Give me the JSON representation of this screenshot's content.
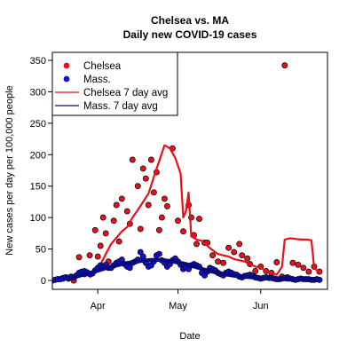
{
  "chart_data": {
    "type": "scatter",
    "title": "Chelsea vs. MA",
    "subtitle": "Daily new COVID-19 cases",
    "xlabel": "Date",
    "ylabel": "New cases per day per 100,000 people",
    "xlim": [
      "2020-03-15",
      "2020-06-26"
    ],
    "ylim": [
      0,
      360
    ],
    "yticks": [
      0,
      50,
      100,
      150,
      200,
      250,
      300,
      350
    ],
    "xticks": [
      {
        "label": "Apr",
        "date": "2020-04-01"
      },
      {
        "label": "May",
        "date": "2020-05-01"
      },
      {
        "label": "Jun",
        "date": "2020-06-01"
      }
    ],
    "grid": false,
    "legend_position": "top-left",
    "legend": [
      {
        "label": "Chelsea",
        "kind": "point",
        "color": "#e8101a"
      },
      {
        "label": "Mass.",
        "kind": "point",
        "color": "#1010d8"
      },
      {
        "label": "Chelsea 7 day avg",
        "kind": "line",
        "color": "#e8101a"
      },
      {
        "label": "Mass. 7 day avg",
        "kind": "line",
        "color": "#0a0a80"
      }
    ],
    "series": [
      {
        "name": "Chelsea",
        "kind": "points",
        "color": "#e8101a",
        "points": [
          [
            "2020-03-17",
            2
          ],
          [
            "2020-03-19",
            4
          ],
          [
            "2020-03-21",
            3
          ],
          [
            "2020-03-23",
            0
          ],
          [
            "2020-03-25",
            37
          ],
          [
            "2020-03-27",
            10
          ],
          [
            "2020-03-28",
            12
          ],
          [
            "2020-03-29",
            40
          ],
          [
            "2020-03-31",
            80
          ],
          [
            "2020-04-01",
            38
          ],
          [
            "2020-04-02",
            55
          ],
          [
            "2020-04-03",
            100
          ],
          [
            "2020-04-04",
            75
          ],
          [
            "2020-04-05",
            30
          ],
          [
            "2020-04-07",
            95
          ],
          [
            "2020-04-08",
            120
          ],
          [
            "2020-04-09",
            62
          ],
          [
            "2020-04-10",
            130
          ],
          [
            "2020-04-12",
            110
          ],
          [
            "2020-04-13",
            90
          ],
          [
            "2020-04-14",
            192
          ],
          [
            "2020-04-16",
            150
          ],
          [
            "2020-04-17",
            82
          ],
          [
            "2020-04-18",
            178
          ],
          [
            "2020-04-19",
            162
          ],
          [
            "2020-04-20",
            120
          ],
          [
            "2020-04-21",
            192
          ],
          [
            "2020-04-22",
            140
          ],
          [
            "2020-04-23",
            172
          ],
          [
            "2020-04-24",
            80
          ],
          [
            "2020-04-25",
            100
          ],
          [
            "2020-04-26",
            130
          ],
          [
            "2020-04-27",
            118
          ],
          [
            "2020-04-29",
            210
          ],
          [
            "2020-05-01",
            95
          ],
          [
            "2020-05-03",
            78
          ],
          [
            "2020-05-05",
            120
          ],
          [
            "2020-05-06",
            100
          ],
          [
            "2020-05-07",
            72
          ],
          [
            "2020-05-08",
            58
          ],
          [
            "2020-05-09",
            98
          ],
          [
            "2020-05-11",
            60
          ],
          [
            "2020-05-12",
            60
          ],
          [
            "2020-05-14",
            40
          ],
          [
            "2020-05-16",
            30
          ],
          [
            "2020-05-18",
            28
          ],
          [
            "2020-05-20",
            52
          ],
          [
            "2020-05-22",
            45
          ],
          [
            "2020-05-24",
            58
          ],
          [
            "2020-05-25",
            40
          ],
          [
            "2020-05-27",
            35
          ],
          [
            "2020-05-28",
            26
          ],
          [
            "2020-05-30",
            15
          ],
          [
            "2020-06-01",
            22
          ],
          [
            "2020-06-03",
            15
          ],
          [
            "2020-06-05",
            12
          ],
          [
            "2020-06-07",
            29
          ],
          [
            "2020-06-09",
            6
          ],
          [
            "2020-06-10",
            342
          ],
          [
            "2020-06-11",
            5
          ],
          [
            "2020-06-13",
            28
          ],
          [
            "2020-06-15",
            25
          ],
          [
            "2020-06-17",
            20
          ],
          [
            "2020-06-19",
            14
          ],
          [
            "2020-06-21",
            22
          ],
          [
            "2020-06-23",
            14
          ]
        ]
      },
      {
        "name": "Mass.",
        "kind": "points",
        "color": "#1010d8",
        "points": [
          [
            "2020-03-15",
            0
          ],
          [
            "2020-03-16",
            1
          ],
          [
            "2020-03-17",
            2
          ],
          [
            "2020-03-18",
            2
          ],
          [
            "2020-03-19",
            3
          ],
          [
            "2020-03-20",
            5
          ],
          [
            "2020-03-21",
            4
          ],
          [
            "2020-03-22",
            6
          ],
          [
            "2020-03-23",
            5
          ],
          [
            "2020-03-24",
            8
          ],
          [
            "2020-03-25",
            12
          ],
          [
            "2020-03-26",
            14
          ],
          [
            "2020-03-27",
            15
          ],
          [
            "2020-03-28",
            13
          ],
          [
            "2020-03-29",
            10
          ],
          [
            "2020-03-30",
            11
          ],
          [
            "2020-03-31",
            16
          ],
          [
            "2020-04-01",
            20
          ],
          [
            "2020-04-02",
            24
          ],
          [
            "2020-04-03",
            22
          ],
          [
            "2020-04-04",
            25
          ],
          [
            "2020-04-05",
            20
          ],
          [
            "2020-04-06",
            20
          ],
          [
            "2020-04-07",
            24
          ],
          [
            "2020-04-08",
            28
          ],
          [
            "2020-04-09",
            30
          ],
          [
            "2020-04-10",
            33
          ],
          [
            "2020-04-11",
            26
          ],
          [
            "2020-04-12",
            22
          ],
          [
            "2020-04-13",
            20
          ],
          [
            "2020-04-14",
            28
          ],
          [
            "2020-04-15",
            30
          ],
          [
            "2020-04-16",
            33
          ],
          [
            "2020-04-17",
            45
          ],
          [
            "2020-04-18",
            38
          ],
          [
            "2020-04-19",
            28
          ],
          [
            "2020-04-20",
            22
          ],
          [
            "2020-04-21",
            24
          ],
          [
            "2020-04-22",
            30
          ],
          [
            "2020-04-23",
            40
          ],
          [
            "2020-04-24",
            42
          ],
          [
            "2020-04-25",
            32
          ],
          [
            "2020-04-26",
            28
          ],
          [
            "2020-04-27",
            22
          ],
          [
            "2020-04-28",
            26
          ],
          [
            "2020-04-29",
            32
          ],
          [
            "2020-04-30",
            35
          ],
          [
            "2020-05-01",
            30
          ],
          [
            "2020-05-02",
            25
          ],
          [
            "2020-05-03",
            18
          ],
          [
            "2020-05-04",
            20
          ],
          [
            "2020-05-05",
            18
          ],
          [
            "2020-05-06",
            24
          ],
          [
            "2020-05-07",
            26
          ],
          [
            "2020-05-08",
            24
          ],
          [
            "2020-05-09",
            22
          ],
          [
            "2020-05-10",
            12
          ],
          [
            "2020-05-11",
            8
          ],
          [
            "2020-05-12",
            14
          ],
          [
            "2020-05-13",
            20
          ],
          [
            "2020-05-14",
            18
          ],
          [
            "2020-05-15",
            16
          ],
          [
            "2020-05-16",
            12
          ],
          [
            "2020-05-17",
            10
          ],
          [
            "2020-05-18",
            8
          ],
          [
            "2020-05-19",
            12
          ],
          [
            "2020-05-20",
            14
          ],
          [
            "2020-05-21",
            12
          ],
          [
            "2020-05-22",
            10
          ],
          [
            "2020-05-23",
            9
          ],
          [
            "2020-05-24",
            6
          ],
          [
            "2020-05-25",
            5
          ],
          [
            "2020-05-26",
            7
          ],
          [
            "2020-05-27",
            8
          ],
          [
            "2020-05-28",
            9
          ],
          [
            "2020-05-29",
            7
          ],
          [
            "2020-05-30",
            5
          ],
          [
            "2020-05-31",
            4
          ],
          [
            "2020-06-01",
            3
          ],
          [
            "2020-06-02",
            4
          ],
          [
            "2020-06-03",
            5
          ],
          [
            "2020-06-04",
            4
          ],
          [
            "2020-06-05",
            4
          ],
          [
            "2020-06-06",
            3
          ],
          [
            "2020-06-07",
            2
          ],
          [
            "2020-06-08",
            2
          ],
          [
            "2020-06-09",
            3
          ],
          [
            "2020-06-10",
            4
          ],
          [
            "2020-06-11",
            3
          ],
          [
            "2020-06-12",
            3
          ],
          [
            "2020-06-13",
            2
          ],
          [
            "2020-06-14",
            1
          ],
          [
            "2020-06-15",
            2
          ],
          [
            "2020-06-16",
            3
          ],
          [
            "2020-06-17",
            2
          ],
          [
            "2020-06-18",
            2
          ],
          [
            "2020-06-19",
            2
          ],
          [
            "2020-06-20",
            1
          ],
          [
            "2020-06-21",
            1
          ],
          [
            "2020-06-22",
            2
          ],
          [
            "2020-06-23",
            1
          ]
        ]
      },
      {
        "name": "Chelsea 7 day avg",
        "kind": "line",
        "color": "#e8101a",
        "points": [
          [
            "2020-03-29",
            5
          ],
          [
            "2020-03-31",
            12
          ],
          [
            "2020-04-02",
            25
          ],
          [
            "2020-04-04",
            42
          ],
          [
            "2020-04-06",
            58
          ],
          [
            "2020-04-08",
            68
          ],
          [
            "2020-04-10",
            78
          ],
          [
            "2020-04-12",
            85
          ],
          [
            "2020-04-14",
            100
          ],
          [
            "2020-04-16",
            112
          ],
          [
            "2020-04-18",
            125
          ],
          [
            "2020-04-20",
            138
          ],
          [
            "2020-04-22",
            165
          ],
          [
            "2020-04-24",
            190
          ],
          [
            "2020-04-26",
            215
          ],
          [
            "2020-04-28",
            210
          ],
          [
            "2020-04-30",
            195
          ],
          [
            "2020-05-02",
            170
          ],
          [
            "2020-05-03",
            100
          ],
          [
            "2020-05-04",
            110
          ],
          [
            "2020-05-05",
            140
          ],
          [
            "2020-05-06",
            70
          ],
          [
            "2020-05-08",
            65
          ],
          [
            "2020-05-10",
            63
          ],
          [
            "2020-05-12",
            55
          ],
          [
            "2020-05-14",
            48
          ],
          [
            "2020-05-16",
            42
          ],
          [
            "2020-05-18",
            40
          ],
          [
            "2020-05-20",
            38
          ],
          [
            "2020-05-22",
            34
          ],
          [
            "2020-05-24",
            32
          ],
          [
            "2020-05-26",
            30
          ],
          [
            "2020-05-28",
            26
          ],
          [
            "2020-05-30",
            22
          ],
          [
            "2020-06-01",
            20
          ],
          [
            "2020-06-03",
            15
          ],
          [
            "2020-06-05",
            12
          ],
          [
            "2020-06-07",
            9
          ],
          [
            "2020-06-09",
            22
          ],
          [
            "2020-06-10",
            65
          ],
          [
            "2020-06-12",
            67
          ],
          [
            "2020-06-14",
            66
          ],
          [
            "2020-06-16",
            65
          ],
          [
            "2020-06-18",
            65
          ],
          [
            "2020-06-20",
            64
          ],
          [
            "2020-06-21",
            20
          ],
          [
            "2020-06-23",
            12
          ]
        ]
      },
      {
        "name": "Mass. 7 day avg",
        "kind": "line",
        "color": "#0a0a80",
        "points": [
          [
            "2020-03-21",
            3
          ],
          [
            "2020-03-24",
            6
          ],
          [
            "2020-03-27",
            10
          ],
          [
            "2020-03-30",
            13
          ],
          [
            "2020-04-02",
            17
          ],
          [
            "2020-04-05",
            21
          ],
          [
            "2020-04-08",
            24
          ],
          [
            "2020-04-11",
            27
          ],
          [
            "2020-04-14",
            29
          ],
          [
            "2020-04-17",
            31
          ],
          [
            "2020-04-20",
            32
          ],
          [
            "2020-04-23",
            33
          ],
          [
            "2020-04-26",
            32
          ],
          [
            "2020-04-29",
            30
          ],
          [
            "2020-05-02",
            28
          ],
          [
            "2020-05-05",
            25
          ],
          [
            "2020-05-08",
            21
          ],
          [
            "2020-05-11",
            17
          ],
          [
            "2020-05-14",
            14
          ],
          [
            "2020-05-17",
            11
          ],
          [
            "2020-05-20",
            9
          ],
          [
            "2020-05-23",
            7
          ],
          [
            "2020-05-26",
            6
          ],
          [
            "2020-05-29",
            5
          ],
          [
            "2020-06-01",
            4
          ],
          [
            "2020-06-04",
            3
          ],
          [
            "2020-06-07",
            3
          ],
          [
            "2020-06-10",
            2
          ],
          [
            "2020-06-13",
            2
          ],
          [
            "2020-06-16",
            2
          ],
          [
            "2020-06-19",
            2
          ],
          [
            "2020-06-23",
            1
          ]
        ]
      }
    ]
  }
}
